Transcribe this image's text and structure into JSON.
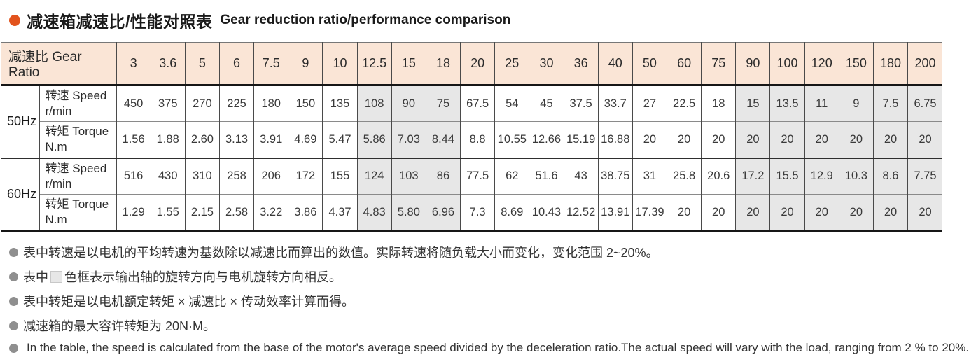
{
  "title": {
    "zh": "减速箱减速比/性能对照表",
    "en": "Gear reduction ratio/performance comparison"
  },
  "colors": {
    "title_bullet": "#e2531d",
    "header_bg": "#fae5d6",
    "shaded_cell_bg": "#e7e7e7",
    "note_bullet": "#8f8f8f"
  },
  "table": {
    "ratio_header": "减速比 Gear Ratio",
    "ratios": [
      "3",
      "3.6",
      "5",
      "6",
      "7.5",
      "9",
      "10",
      "12.5",
      "15",
      "18",
      "20",
      "25",
      "30",
      "36",
      "40",
      "50",
      "60",
      "75",
      "90",
      "100",
      "120",
      "150",
      "180",
      "200"
    ],
    "shaded_columns": [
      7,
      8,
      9,
      18,
      19,
      20,
      21,
      22,
      23
    ],
    "row_groups": [
      {
        "freq": "50Hz",
        "rows": [
          {
            "label_zh": "转速 Speed",
            "label_unit": "r/min",
            "values": [
              "450",
              "375",
              "270",
              "225",
              "180",
              "150",
              "135",
              "108",
              "90",
              "75",
              "67.5",
              "54",
              "45",
              "37.5",
              "33.7",
              "27",
              "22.5",
              "18",
              "15",
              "13.5",
              "11",
              "9",
              "7.5",
              "6.75"
            ]
          },
          {
            "label_zh": "转矩 Torque",
            "label_unit": "N.m",
            "values": [
              "1.56",
              "1.88",
              "2.60",
              "3.13",
              "3.91",
              "4.69",
              "5.47",
              "5.86",
              "7.03",
              "8.44",
              "8.8",
              "10.55",
              "12.66",
              "15.19",
              "16.88",
              "20",
              "20",
              "20",
              "20",
              "20",
              "20",
              "20",
              "20",
              "20"
            ]
          }
        ]
      },
      {
        "freq": "60Hz",
        "rows": [
          {
            "label_zh": "转速 Speed",
            "label_unit": "r/min",
            "values": [
              "516",
              "430",
              "310",
              "258",
              "206",
              "172",
              "155",
              "124",
              "103",
              "86",
              "77.5",
              "62",
              "51.6",
              "43",
              "38.75",
              "31",
              "25.8",
              "20.6",
              "17.2",
              "15.5",
              "12.9",
              "10.3",
              "8.6",
              "7.75"
            ]
          },
          {
            "label_zh": "转矩 Torque",
            "label_unit": "N.m",
            "values": [
              "1.29",
              "1.55",
              "2.15",
              "2.58",
              "3.22",
              "3.86",
              "4.37",
              "4.83",
              "5.80",
              "6.96",
              "7.3",
              "8.69",
              "10.43",
              "12.52",
              "13.91",
              "17.39",
              "20",
              "20",
              "20",
              "20",
              "20",
              "20",
              "20",
              "20"
            ]
          }
        ]
      }
    ]
  },
  "notes": [
    {
      "type": "zh",
      "text": "表中转速是以电机的平均转速为基数除以减速比而算出的数值。实际转速将随负载大小而变化，变化范围 2~20%。"
    },
    {
      "type": "zh-swatch",
      "pre": "表中",
      "post": "色框表示输出轴的旋转方向与电机旋转方向相反。"
    },
    {
      "type": "zh",
      "text": "表中转矩是以电机额定转矩 × 减速比 × 传动效率计算而得。"
    },
    {
      "type": "zh",
      "text": "减速箱的最大容许转矩为 20N·M。"
    },
    {
      "type": "en",
      "text": "In the table, the speed is calculated from the base of the motor's average speed divided by the deceleration ratio.The actual speed will vary with the load, ranging from 2 % to 20%."
    }
  ]
}
